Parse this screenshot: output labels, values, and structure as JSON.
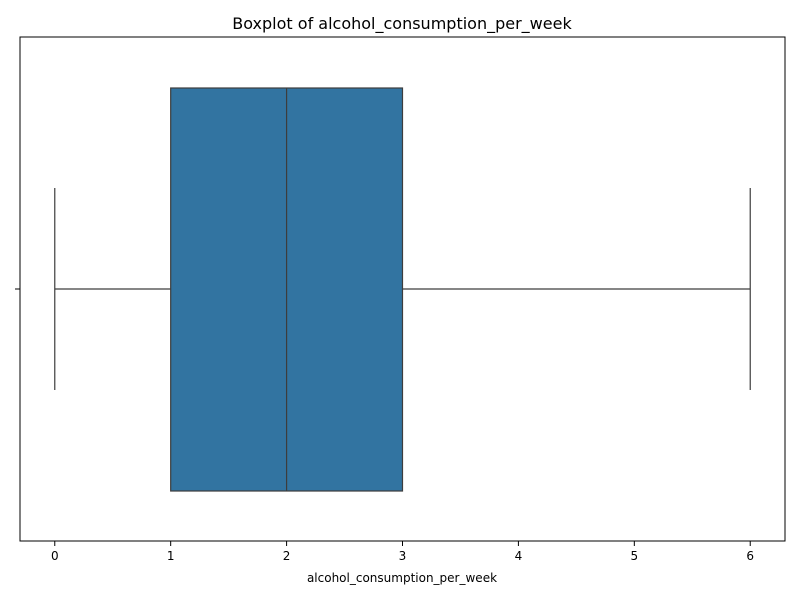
{
  "chart_data": {
    "type": "boxplot",
    "title": "Boxplot of alcohol_consumption_per_week",
    "xlabel": "alcohol_consumption_per_week",
    "ylabel": "",
    "orientation": "horizontal",
    "xlim": [
      -0.3,
      6.3
    ],
    "xticks": [
      0,
      1,
      2,
      3,
      4,
      5,
      6
    ],
    "xtick_labels": [
      "0",
      "1",
      "2",
      "3",
      "4",
      "5",
      "6"
    ],
    "grid": false,
    "box": {
      "whisker_low": 0,
      "q1": 1,
      "median": 2,
      "q3": 3,
      "whisker_high": 6
    },
    "colors": {
      "box_fill": "#3274a1",
      "line": "#3d3d3d",
      "axes": "#000000"
    }
  }
}
